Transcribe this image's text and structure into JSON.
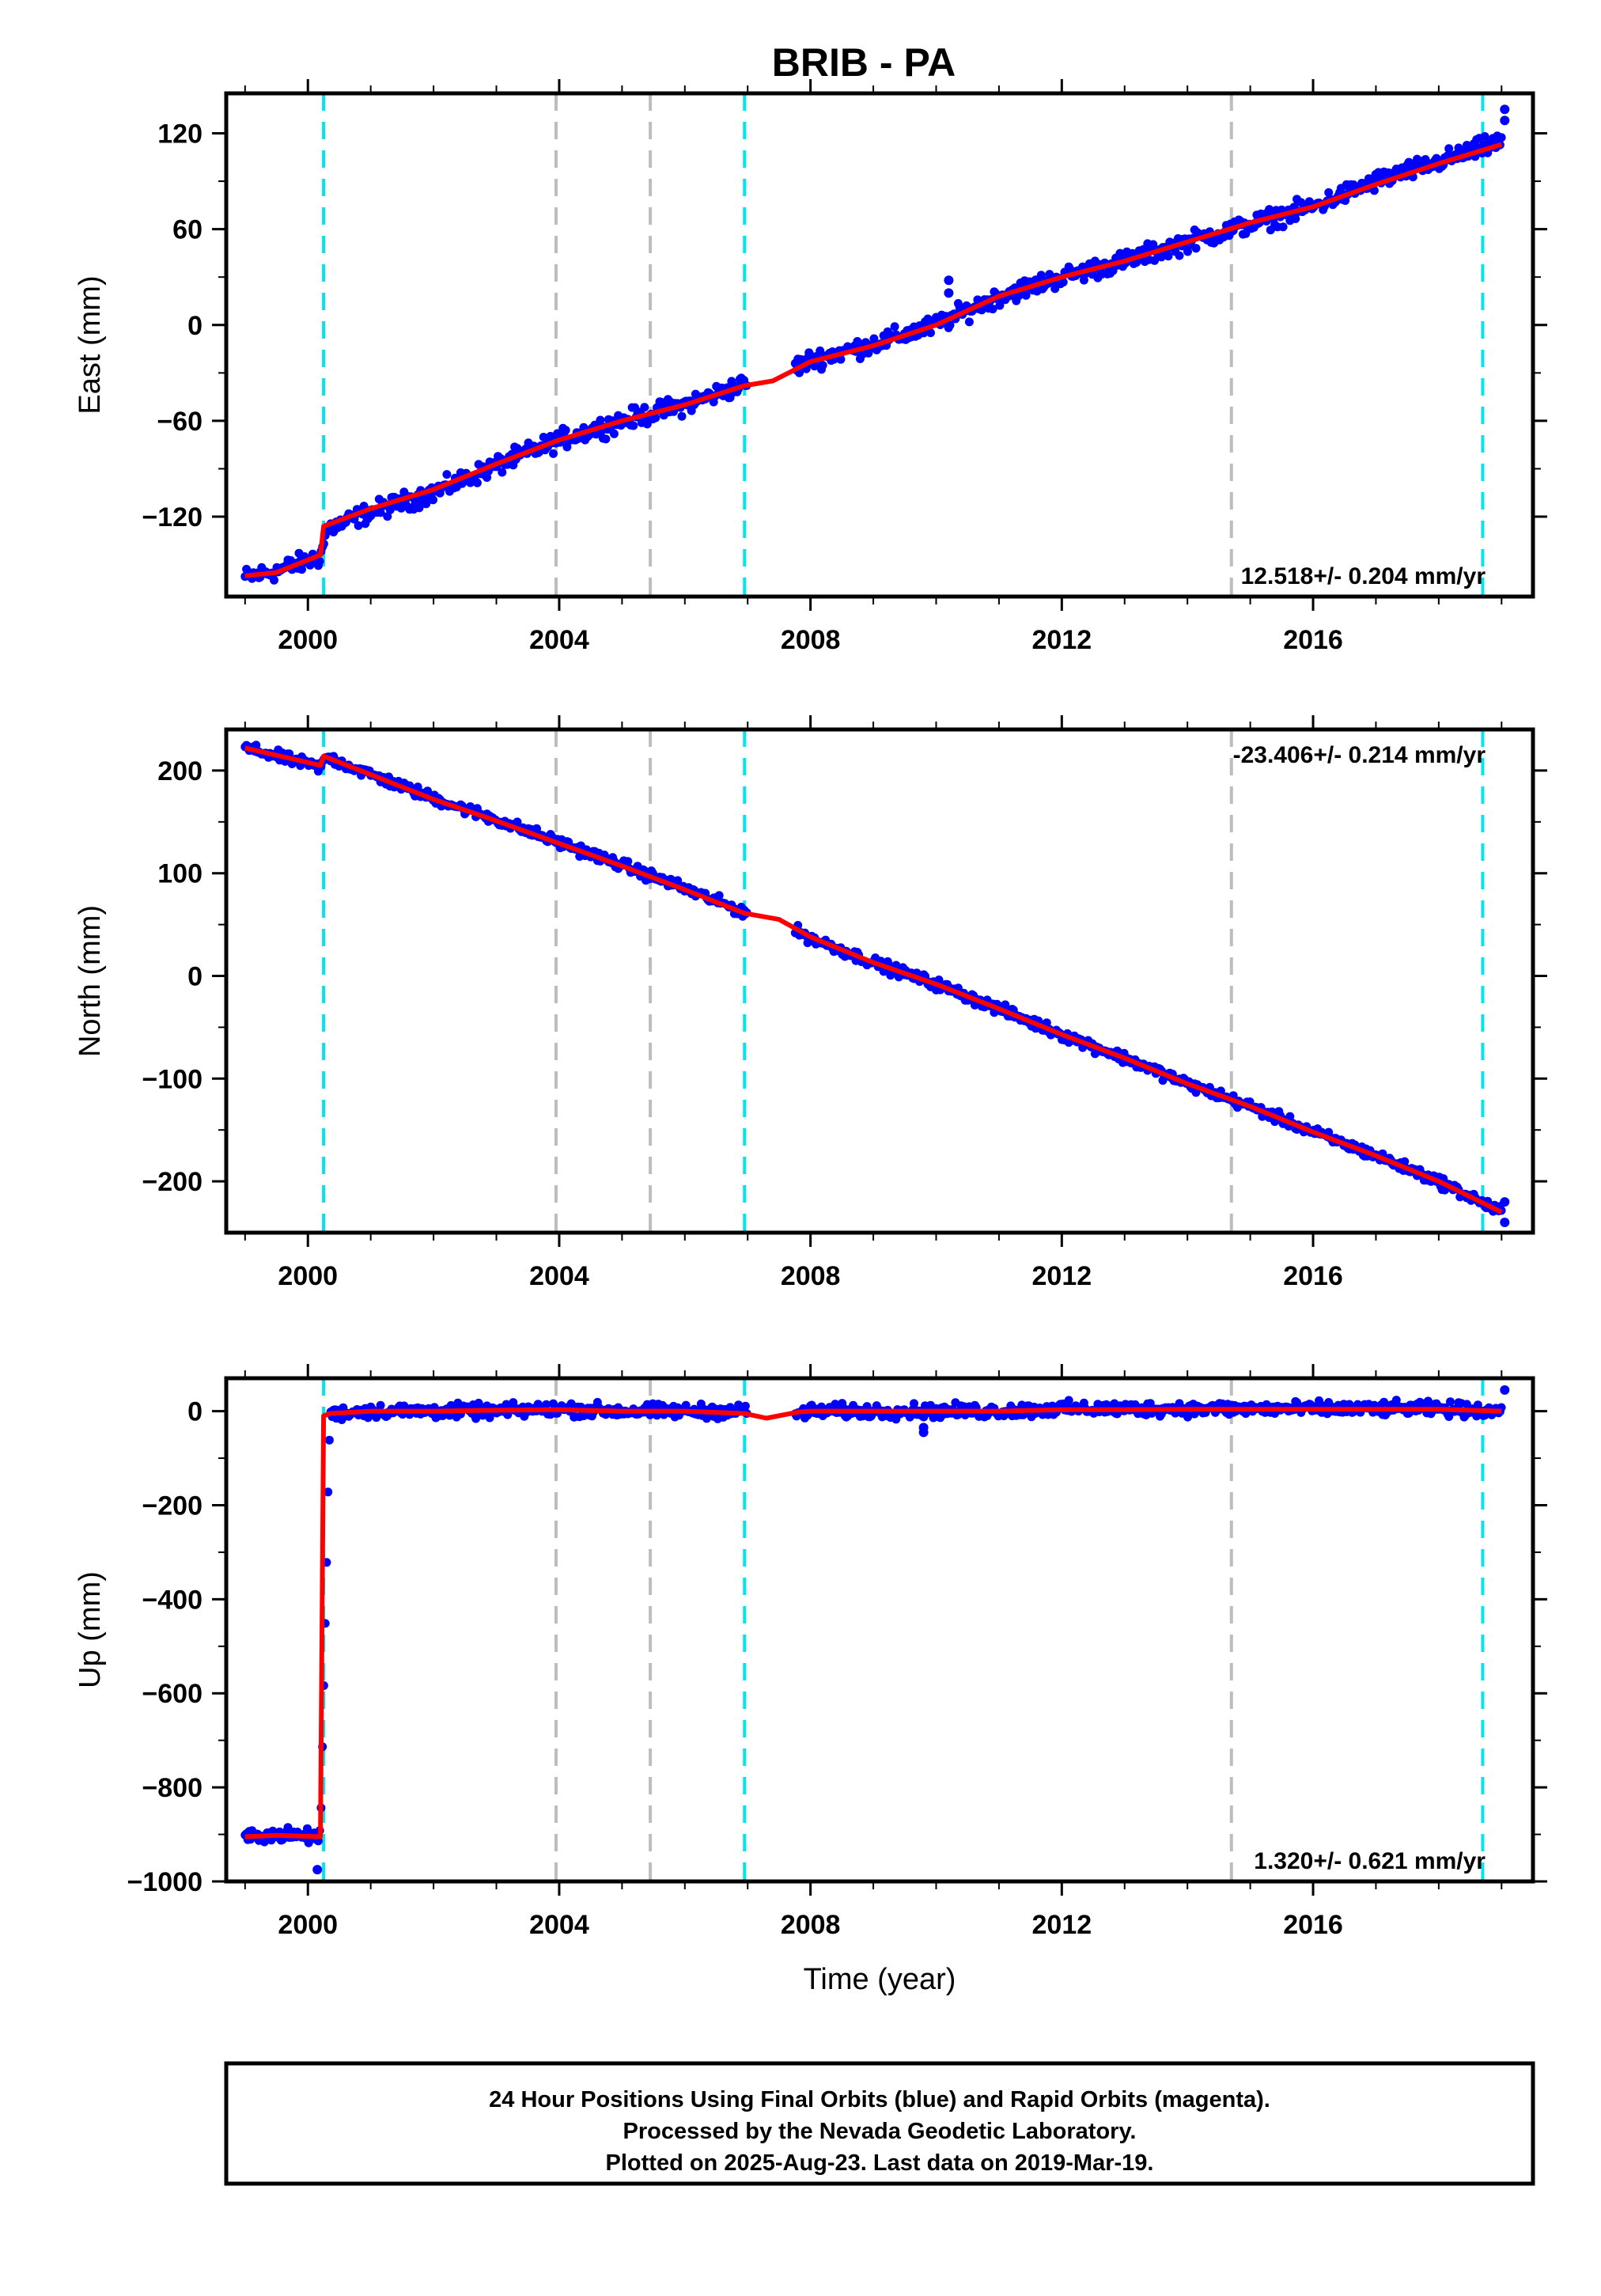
{
  "chart_data": [
    {
      "type": "scatter",
      "title": "BRIB - PA",
      "ylabel": "East (mm)",
      "xlabel": "",
      "xlim": [
        1998.7,
        2019.5
      ],
      "ylim": [
        -170,
        145
      ],
      "yticks": [
        "120",
        "60",
        "0",
        "−60",
        "−120"
      ],
      "ytick_values": [
        120,
        60,
        0,
        -60,
        -120
      ],
      "xticks": [
        "2000",
        "2004",
        "2008",
        "2012",
        "2016"
      ],
      "xtick_values": [
        2000,
        2004,
        2008,
        2012,
        2016
      ],
      "rate_text": "12.518+/- 0.204 mm/yr",
      "grid": false,
      "events_cyan": [
        2000.25,
        2006.95,
        2018.7
      ],
      "events_gray": [
        2003.95,
        2005.45,
        2014.7
      ],
      "series": [
        {
          "name": "",
          "kind": "points",
          "color": "#0000ff",
          "x": [
            1999.0,
            1999.5,
            2000.2,
            2000.3,
            2001.0,
            2002.0,
            2003.0,
            2004.0,
            2005.0,
            2006.0,
            2006.95,
            2007.5,
            2008.0,
            2009.0,
            2010.0,
            2011.0,
            2012.0,
            2013.0,
            2014.0,
            2015.0,
            2016.0,
            2017.0,
            2018.0,
            2019.0
          ],
          "y": [
            -158,
            -154,
            -145,
            -128,
            -117,
            -105,
            -88,
            -72,
            -60,
            -50,
            -37,
            -31,
            -22,
            -12,
            0,
            18,
            30,
            40,
            52,
            63,
            74,
            90,
            102,
            115
          ],
          "spread": 4.5
        },
        {
          "name": "",
          "kind": "line",
          "color": "#ff0000",
          "x": [
            1999.0,
            1999.5,
            2000.2,
            2000.25,
            2001.0,
            2002.0,
            2003.0,
            2004.0,
            2005.0,
            2006.0,
            2006.95,
            2007.4,
            2008.0,
            2009.0,
            2010.0,
            2011.0,
            2012.0,
            2013.0,
            2014.0,
            2015.0,
            2016.0,
            2017.0,
            2018.0,
            2019.0
          ],
          "y": [
            -157,
            -155,
            -144,
            -126,
            -115,
            -103,
            -87,
            -72,
            -60,
            -50,
            -38,
            -35,
            -23,
            -13,
            0,
            18,
            30,
            40,
            52,
            64,
            74,
            88,
            101,
            113
          ]
        }
      ],
      "outliers": [
        [
          2010.2,
          28
        ],
        [
          2010.2,
          20
        ],
        [
          2019.05,
          135
        ],
        [
          2019.05,
          128
        ]
      ]
    },
    {
      "type": "scatter",
      "title": "",
      "ylabel": "North (mm)",
      "xlabel": "",
      "xlim": [
        1998.7,
        2019.5
      ],
      "ylim": [
        -250,
        240
      ],
      "yticks": [
        "200",
        "100",
        "0",
        "−100",
        "−200"
      ],
      "ytick_values": [
        200,
        100,
        0,
        -100,
        -200
      ],
      "xticks": [
        "2000",
        "2004",
        "2008",
        "2012",
        "2016"
      ],
      "xtick_values": [
        2000,
        2004,
        2008,
        2012,
        2016
      ],
      "rate_text": "-23.406+/- 0.214 mm/yr",
      "grid": false,
      "events_cyan": [
        2000.25,
        2006.95,
        2018.7
      ],
      "events_gray": [
        2003.95,
        2005.45,
        2014.7
      ],
      "series": [
        {
          "name": "",
          "kind": "points",
          "color": "#0000ff",
          "x": [
            1999.0,
            2000.2,
            2000.3,
            2001.0,
            2002.0,
            2003.0,
            2004.0,
            2005.0,
            2006.0,
            2006.95,
            2007.5,
            2008.0,
            2009.0,
            2010.0,
            2011.0,
            2012.0,
            2013.0,
            2014.0,
            2015.0,
            2016.0,
            2017.0,
            2018.0,
            2019.0
          ],
          "y": [
            222,
            203,
            213,
            196,
            173,
            152,
            130,
            108,
            85,
            62,
            52,
            37,
            13,
            -8,
            -32,
            -57,
            -80,
            -105,
            -127,
            -152,
            -175,
            -200,
            -230
          ],
          "spread": 4.0
        },
        {
          "name": "",
          "kind": "line",
          "color": "#ff0000",
          "x": [
            1999.0,
            2000.2,
            2000.25,
            2001.0,
            2002.0,
            2003.0,
            2004.0,
            2005.0,
            2006.0,
            2006.95,
            2007.5,
            2008.0,
            2009.0,
            2010.0,
            2011.0,
            2012.0,
            2013.0,
            2014.0,
            2015.0,
            2016.0,
            2017.0,
            2018.0,
            2019.0
          ],
          "y": [
            222,
            205,
            214,
            196,
            172,
            151,
            129,
            107,
            84,
            61,
            55,
            38,
            13,
            -8,
            -32,
            -57,
            -80,
            -105,
            -127,
            -152,
            -175,
            -200,
            -230
          ]
        }
      ],
      "outliers": [
        [
          2019.05,
          -240
        ],
        [
          2019.05,
          -220
        ]
      ]
    },
    {
      "type": "scatter",
      "title": "",
      "ylabel": "Up (mm)",
      "xlabel": "Time (year)",
      "xlim": [
        1998.7,
        2019.5
      ],
      "ylim": [
        -1000,
        70
      ],
      "yticks": [
        "0",
        "−200",
        "−400",
        "−600",
        "−800",
        "−1000"
      ],
      "ytick_values": [
        0,
        -200,
        -400,
        -600,
        -800,
        -1000
      ],
      "xticks": [
        "2000",
        "2004",
        "2008",
        "2012",
        "2016"
      ],
      "xtick_values": [
        2000,
        2004,
        2008,
        2012,
        2016
      ],
      "rate_text": "1.320+/- 0.621 mm/yr",
      "grid": false,
      "events_cyan": [
        2000.25,
        2006.95,
        2018.7
      ],
      "events_gray": [
        2003.95,
        2005.45,
        2014.7
      ],
      "series": [
        {
          "name": "",
          "kind": "points",
          "color": "#0000ff",
          "x": [
            1999.0,
            1999.5,
            2000.2,
            2000.35,
            2001.0,
            2002.0,
            2003.0,
            2004.0,
            2005.0,
            2006.0,
            2006.95,
            2007.8,
            2008.0,
            2009.0,
            2010.0,
            2011.0,
            2012.0,
            2013.0,
            2014.0,
            2015.0,
            2016.0,
            2017.0,
            2018.0,
            2019.0
          ],
          "y": [
            -905,
            -900,
            -905,
            -5,
            0,
            0,
            0,
            5,
            0,
            0,
            0,
            -5,
            0,
            0,
            0,
            0,
            5,
            5,
            5,
            5,
            5,
            5,
            5,
            0
          ],
          "spread": 11
        },
        {
          "name": "",
          "kind": "line",
          "color": "#ff0000",
          "x": [
            1999.0,
            1999.5,
            2000.2,
            2000.25,
            2000.35,
            2001.0,
            2002.0,
            2003.0,
            2004.0,
            2005.0,
            2006.0,
            2006.95,
            2007.3,
            2007.8,
            2008.0,
            2009.0,
            2010.0,
            2011.0,
            2012.0,
            2013.0,
            2014.0,
            2015.0,
            2016.0,
            2017.0,
            2018.0,
            2019.0
          ],
          "y": [
            -905,
            -902,
            -905,
            -10,
            -5,
            0,
            0,
            2,
            3,
            0,
            0,
            -5,
            -15,
            -2,
            0,
            0,
            0,
            0,
            3,
            3,
            4,
            4,
            4,
            4,
            4,
            0
          ]
        }
      ],
      "outliers": [
        [
          2009.8,
          -45
        ],
        [
          2009.8,
          -35
        ],
        [
          2000.15,
          -975
        ],
        [
          2019.05,
          45
        ]
      ]
    }
  ],
  "footer": {
    "lines": [
      "24 Hour Positions Using Final Orbits (blue) and Rapid Orbits (magenta).",
      "Processed by the Nevada Geodetic Laboratory.",
      "Plotted on 2025-Aug-23. Last data on 2019-Mar-19."
    ]
  }
}
